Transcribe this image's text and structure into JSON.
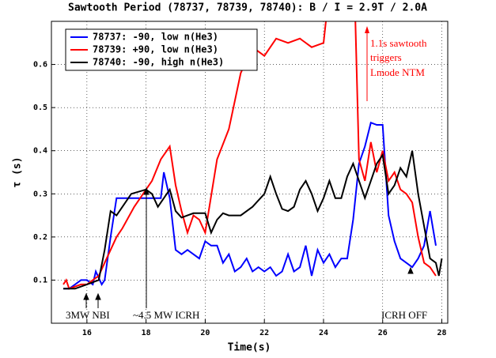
{
  "chart_data": {
    "type": "line",
    "title": "Sawtooth Period (78737, 78739, 78740):  B / I = 2.9T / 2.0A",
    "x_label": "Time(s)",
    "y_label": "τ (s)",
    "xlim": [
      14.8,
      28.2
    ],
    "xticks": [
      16,
      18,
      20,
      22,
      24,
      26,
      28
    ],
    "ylim": [
      0,
      0.7
    ],
    "yticks": [
      0.1,
      0.2,
      0.3,
      0.4,
      0.5,
      0.6
    ],
    "grid": true,
    "legend": "upper left",
    "series": [
      {
        "name": "78737: -90, low n(He3)",
        "color": "#0000ff",
        "x": [
          15.2,
          15.4,
          15.6,
          15.8,
          16.0,
          16.2,
          16.3,
          16.5,
          16.6,
          16.8,
          17.0,
          17.4,
          17.8,
          18.2,
          18.5,
          18.6,
          18.8,
          19.0,
          19.2,
          19.4,
          19.6,
          19.8,
          20.0,
          20.2,
          20.4,
          20.6,
          20.8,
          21.0,
          21.2,
          21.4,
          21.6,
          21.8,
          22.0,
          22.2,
          22.4,
          22.6,
          22.8,
          23.0,
          23.2,
          23.4,
          23.6,
          23.8,
          24.0,
          24.2,
          24.4,
          24.6,
          24.8,
          25.0,
          25.2,
          25.4,
          25.6,
          25.8,
          26.0,
          26.2,
          26.4,
          26.6,
          26.8,
          27.0,
          27.2,
          27.4,
          27.6,
          27.8
        ],
        "values": [
          0.08,
          0.08,
          0.09,
          0.1,
          0.1,
          0.09,
          0.12,
          0.09,
          0.1,
          0.2,
          0.29,
          0.29,
          0.29,
          0.29,
          0.29,
          0.35,
          0.29,
          0.17,
          0.16,
          0.17,
          0.16,
          0.15,
          0.19,
          0.18,
          0.18,
          0.14,
          0.16,
          0.12,
          0.13,
          0.15,
          0.12,
          0.13,
          0.12,
          0.13,
          0.11,
          0.12,
          0.16,
          0.12,
          0.13,
          0.18,
          0.11,
          0.17,
          0.14,
          0.16,
          0.13,
          0.15,
          0.15,
          0.24,
          0.37,
          0.41,
          0.465,
          0.46,
          0.46,
          0.25,
          0.19,
          0.15,
          0.14,
          0.13,
          0.15,
          0.18,
          0.26,
          0.18
        ]
      },
      {
        "name": "78739: +90, low n(He3)",
        "color": "#ff0000",
        "x": [
          15.2,
          15.3,
          15.4,
          15.8,
          16.0,
          16.2,
          16.4,
          16.6,
          16.8,
          17.0,
          17.2,
          17.6,
          18.0,
          18.2,
          18.5,
          18.8,
          19.0,
          19.2,
          19.4,
          19.6,
          19.8,
          20.0,
          20.4,
          20.8,
          21.2,
          21.6,
          21.8,
          22.0,
          22.4,
          22.8,
          23.2,
          23.6,
          24.0,
          24.4,
          25.0,
          25.2,
          25.4,
          25.6,
          25.8,
          26.0,
          26.2,
          26.4,
          26.6,
          26.8,
          27.0,
          27.2,
          27.4,
          27.6,
          27.8
        ],
        "values": [
          0.09,
          0.1,
          0.08,
          0.09,
          0.09,
          0.1,
          0.11,
          0.14,
          0.17,
          0.2,
          0.22,
          0.27,
          0.31,
          0.33,
          0.38,
          0.41,
          0.32,
          0.26,
          0.21,
          0.25,
          0.24,
          0.21,
          0.38,
          0.45,
          0.58,
          0.64,
          0.63,
          0.62,
          0.66,
          0.65,
          0.66,
          0.64,
          0.65,
          0.9,
          0.9,
          0.38,
          0.33,
          0.42,
          0.35,
          0.4,
          0.33,
          0.35,
          0.31,
          0.3,
          0.28,
          0.2,
          0.14,
          0.13,
          0.11
        ]
      },
      {
        "name": "78740: -90, high n(He3)",
        "color": "#000000",
        "x": [
          15.2,
          15.6,
          16.0,
          16.4,
          16.6,
          16.8,
          17.0,
          17.3,
          17.5,
          18.0,
          18.2,
          18.4,
          18.8,
          19.0,
          19.2,
          19.6,
          20.0,
          20.2,
          20.4,
          20.6,
          20.8,
          21.2,
          21.6,
          22.0,
          22.2,
          22.4,
          22.6,
          22.8,
          23.0,
          23.2,
          23.4,
          23.6,
          23.8,
          24.0,
          24.2,
          24.4,
          24.6,
          24.8,
          25.0,
          25.4,
          25.8,
          26.0,
          26.2,
          26.4,
          26.6,
          26.8,
          27.0,
          27.2,
          27.6,
          27.8,
          27.9,
          28.0
        ],
        "values": [
          0.08,
          0.08,
          0.09,
          0.1,
          0.17,
          0.26,
          0.25,
          0.28,
          0.3,
          0.31,
          0.3,
          0.27,
          0.31,
          0.26,
          0.245,
          0.255,
          0.255,
          0.21,
          0.24,
          0.255,
          0.25,
          0.25,
          0.27,
          0.3,
          0.34,
          0.3,
          0.265,
          0.26,
          0.27,
          0.31,
          0.33,
          0.3,
          0.26,
          0.29,
          0.33,
          0.29,
          0.29,
          0.34,
          0.37,
          0.29,
          0.37,
          0.39,
          0.3,
          0.32,
          0.36,
          0.34,
          0.4,
          0.3,
          0.15,
          0.14,
          0.11,
          0.15
        ]
      }
    ],
    "annotations": [
      {
        "text": "1.1s sawtooth",
        "color": "#ff0000"
      },
      {
        "text": "triggers",
        "color": "#ff0000"
      },
      {
        "text": "Lmode NTM",
        "color": "#ff0000"
      },
      {
        "text": "3MW NBI",
        "color": "#000000"
      },
      {
        "text": "~4.5 MW ICRH",
        "color": "#000000"
      },
      {
        "text": "ICRH OFF",
        "color": "#000000"
      }
    ]
  }
}
